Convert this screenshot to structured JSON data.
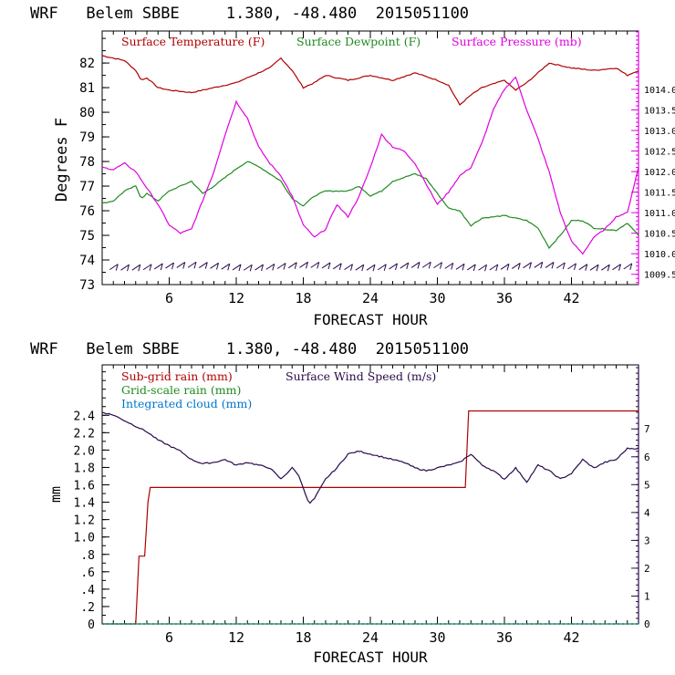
{
  "colors": {
    "temperature": "#b00000",
    "dewpoint": "#1f8a1f",
    "pressure": "#e000e0",
    "subgrid": "#b00000",
    "gridscale": "#1f8a1f",
    "cloud": "#0077cc",
    "wind": "#2a0a4a",
    "axis": "#000000"
  },
  "chart_data": [
    {
      "type": "line",
      "title": "WRF   Belem SBBE     1.380, -48.480  2015051100",
      "xlabel": "FORECAST HOUR",
      "ylabel": "Degrees F",
      "xlim": [
        0,
        48
      ],
      "ylim": [
        73,
        83.3
      ],
      "y2lim": [
        1009.25,
        1015.42
      ],
      "xticks": [
        6,
        12,
        18,
        24,
        30,
        36,
        42
      ],
      "xtick_labels": [
        "6",
        "12",
        "18",
        "24",
        "30",
        "36",
        "42"
      ],
      "yticks": [
        73,
        74,
        75,
        76,
        77,
        78,
        79,
        80,
        81,
        82
      ],
      "ytick_labels": [
        "73",
        "74",
        "75",
        "76",
        "77",
        "78",
        "79",
        "80",
        "81",
        "82"
      ],
      "y2ticks": [
        1009.5,
        1010.0,
        1010.5,
        1011.0,
        1011.5,
        1012.0,
        1012.5,
        1013.0,
        1013.5,
        1014.0
      ],
      "y2tick_labels": [
        "1009.5",
        "1010.0",
        "1010.5",
        "1011.0",
        "1011.5",
        "1012.0",
        "1012.5",
        "1013.0",
        "1013.5",
        "1014.0"
      ],
      "legend": [
        "Surface Temperature (F)",
        "Surface Dewpoint (F)",
        "Surface Pressure (mb)"
      ],
      "series": [
        {
          "name": "Surface Temperature (F)",
          "axis": "left",
          "color_key": "temperature",
          "x": [
            0,
            2,
            3,
            3.5,
            4,
            5,
            6,
            8,
            9,
            10,
            12,
            14,
            15,
            16,
            17,
            18,
            19,
            20,
            22,
            24,
            26,
            28,
            30,
            31,
            32,
            33,
            34,
            36,
            37,
            38,
            40,
            42,
            44,
            46,
            47,
            48
          ],
          "values": [
            82.3,
            82.1,
            81.7,
            81.3,
            81.4,
            81.0,
            80.9,
            80.8,
            80.9,
            81.0,
            81.2,
            81.6,
            81.8,
            82.2,
            81.7,
            81.0,
            81.2,
            81.5,
            81.3,
            81.5,
            81.3,
            81.6,
            81.3,
            81.1,
            80.3,
            80.7,
            81.0,
            81.3,
            80.9,
            81.2,
            82.0,
            81.8,
            81.7,
            81.8,
            81.5,
            81.7
          ]
        },
        {
          "name": "Surface Dewpoint (F)",
          "axis": "left",
          "color_key": "dewpoint",
          "x": [
            0,
            1,
            2,
            3,
            3.5,
            4,
            5,
            6,
            8,
            9,
            10,
            12,
            13,
            14,
            16,
            17,
            18,
            19,
            20,
            22,
            23,
            24,
            25,
            26,
            28,
            29,
            30,
            31,
            32,
            33,
            34,
            36,
            38,
            39,
            40,
            41,
            42,
            43,
            44,
            46,
            47,
            48
          ],
          "values": [
            76.3,
            76.4,
            76.8,
            77.0,
            76.5,
            76.7,
            76.4,
            76.8,
            77.2,
            76.7,
            77.0,
            77.7,
            78.0,
            77.8,
            77.2,
            76.5,
            76.2,
            76.6,
            76.8,
            76.8,
            77.0,
            76.6,
            76.8,
            77.2,
            77.5,
            77.3,
            76.7,
            76.1,
            76.0,
            75.4,
            75.7,
            75.8,
            75.6,
            75.3,
            74.5,
            75.0,
            75.6,
            75.6,
            75.3,
            75.2,
            75.5,
            75.0
          ]
        },
        {
          "name": "Surface Pressure (mb)",
          "axis": "right",
          "color_key": "pressure",
          "x": [
            0,
            1,
            2,
            3,
            4,
            5,
            6,
            7,
            8,
            9,
            10,
            11,
            12,
            13,
            14,
            15,
            16,
            17,
            18,
            19,
            20,
            21,
            22,
            23,
            24,
            25,
            26,
            27,
            28,
            29,
            30,
            31,
            32,
            33,
            34,
            35,
            36,
            37,
            38,
            39,
            40,
            41,
            42,
            43,
            44,
            45,
            46,
            47,
            48
          ],
          "values": [
            1012.1,
            1012.05,
            1012.2,
            1012.0,
            1011.6,
            1011.2,
            1010.7,
            1010.5,
            1010.6,
            1011.3,
            1012.0,
            1012.9,
            1013.7,
            1013.3,
            1012.6,
            1012.2,
            1011.9,
            1011.4,
            1010.7,
            1010.4,
            1010.6,
            1011.2,
            1010.9,
            1011.4,
            1012.1,
            1012.9,
            1012.6,
            1012.5,
            1012.2,
            1011.7,
            1011.2,
            1011.5,
            1011.9,
            1012.1,
            1012.7,
            1013.5,
            1014.0,
            1014.3,
            1013.5,
            1012.8,
            1012.0,
            1011.0,
            1010.3,
            1010.0,
            1010.4,
            1010.6,
            1010.9,
            1011.0,
            1012.1
          ]
        }
      ],
      "wind_barbs_row_value": 73.75
    },
    {
      "type": "line",
      "title": "WRF   Belem SBBE     1.380, -48.480  2015051100",
      "xlabel": "FORECAST HOUR",
      "ylabel": "mm",
      "xlim": [
        0,
        48
      ],
      "ylim": [
        0,
        2.98
      ],
      "y2lim": [
        0,
        9.3
      ],
      "xticks": [
        6,
        12,
        18,
        24,
        30,
        36,
        42
      ],
      "xtick_labels": [
        "6",
        "12",
        "18",
        "24",
        "30",
        "36",
        "42"
      ],
      "yticks": [
        0,
        0.2,
        0.4,
        0.6,
        0.8,
        1.0,
        1.2,
        1.4,
        1.6,
        1.8,
        2.0,
        2.2,
        2.4
      ],
      "ytick_labels": [
        "0",
        ".2",
        ".4",
        ".6",
        ".8",
        "1.0",
        "1.2",
        "1.4",
        "1.6",
        "1.8",
        "2.0",
        "2.2",
        "2.4"
      ],
      "y2ticks": [
        0,
        1,
        2,
        3,
        4,
        5,
        6,
        7
      ],
      "y2tick_labels": [
        "0",
        "1",
        "2",
        "3",
        "4",
        "5",
        "6",
        "7"
      ],
      "legend": [
        "Sub-grid rain (mm)",
        "Surface Wind Speed (m/s)",
        "Grid-scale rain (mm)",
        "Integrated cloud (mm)"
      ],
      "series": [
        {
          "name": "Sub-grid rain (mm)",
          "axis": "left",
          "color_key": "subgrid",
          "step": true,
          "x": [
            0,
            3,
            3.3,
            3.8,
            4.1,
            4.3,
            32.5,
            32.8,
            48
          ],
          "values": [
            0,
            0,
            0.78,
            0.78,
            1.4,
            1.57,
            1.57,
            2.45,
            2.45
          ]
        },
        {
          "name": "Grid-scale rain (mm)",
          "axis": "left",
          "color_key": "gridscale",
          "x": [
            0,
            48
          ],
          "values": [
            0,
            0
          ]
        },
        {
          "name": "Integrated cloud (mm)",
          "axis": "left",
          "color_key": "cloud",
          "dotted": true,
          "x": [
            0,
            48
          ],
          "values": [
            0,
            0
          ]
        },
        {
          "name": "Surface Wind Speed (m/s)",
          "axis": "right",
          "color_key": "wind",
          "x": [
            0,
            1,
            2,
            3,
            4,
            5,
            6,
            7,
            8,
            9,
            10,
            11,
            12,
            13,
            14,
            15,
            16,
            17,
            17.5,
            18,
            18.5,
            19,
            20,
            21,
            22,
            23,
            24,
            25,
            26,
            27,
            28,
            29,
            30,
            31,
            32,
            33,
            34,
            35,
            36,
            37,
            38,
            39,
            40,
            41,
            42,
            43,
            44,
            45,
            46,
            47,
            48
          ],
          "values": [
            7.6,
            7.5,
            7.3,
            7.1,
            6.9,
            6.6,
            6.4,
            6.2,
            5.9,
            5.75,
            5.8,
            5.9,
            5.7,
            5.8,
            5.7,
            5.6,
            5.2,
            5.6,
            5.4,
            4.9,
            4.3,
            4.5,
            5.2,
            5.6,
            6.1,
            6.2,
            6.1,
            6.0,
            5.9,
            5.8,
            5.6,
            5.5,
            5.6,
            5.7,
            5.8,
            6.1,
            5.7,
            5.5,
            5.2,
            5.6,
            5.1,
            5.7,
            5.5,
            5.2,
            5.4,
            5.9,
            5.6,
            5.8,
            5.9,
            6.3,
            6.3
          ]
        }
      ]
    }
  ]
}
